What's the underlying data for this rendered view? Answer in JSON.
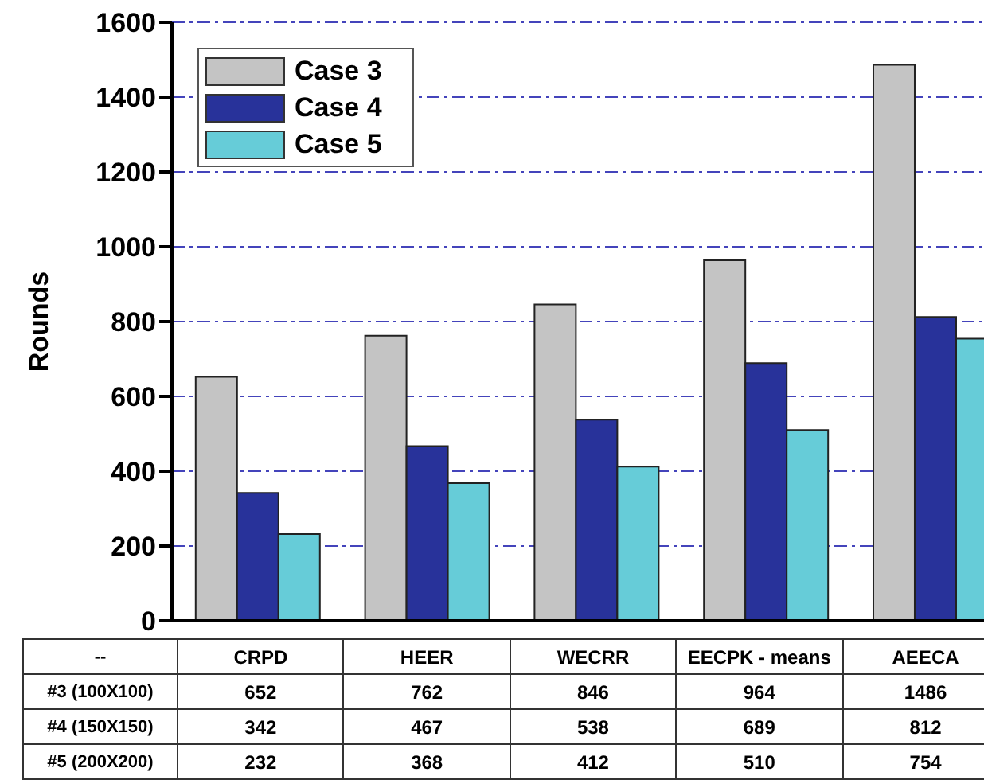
{
  "chart_data": {
    "type": "bar",
    "ylabel": "Rounds",
    "categories": [
      "CRPD",
      "HEER",
      "WECRR",
      "EECPK - means",
      "AEECA"
    ],
    "series": [
      {
        "name": "Case 3",
        "color": "#c4c4c4",
        "values": [
          652,
          762,
          846,
          964,
          1486
        ]
      },
      {
        "name": "Case 4",
        "color": "#28329a",
        "values": [
          342,
          467,
          538,
          689,
          812
        ]
      },
      {
        "name": "Case 5",
        "color": "#66ccd8",
        "values": [
          232,
          368,
          412,
          510,
          754
        ]
      }
    ],
    "annotations": [
      "--",
      "#3 (100X100)",
      "#4 (150X150)",
      "#5 (200X200)"
    ],
    "ylim": [
      0,
      1600
    ],
    "yticks": [
      0,
      200,
      400,
      600,
      800,
      1000,
      1200,
      1400,
      1600
    ],
    "grid": "y",
    "legend": "top left",
    "tick_labels": "y",
    "data_labels": true
  }
}
